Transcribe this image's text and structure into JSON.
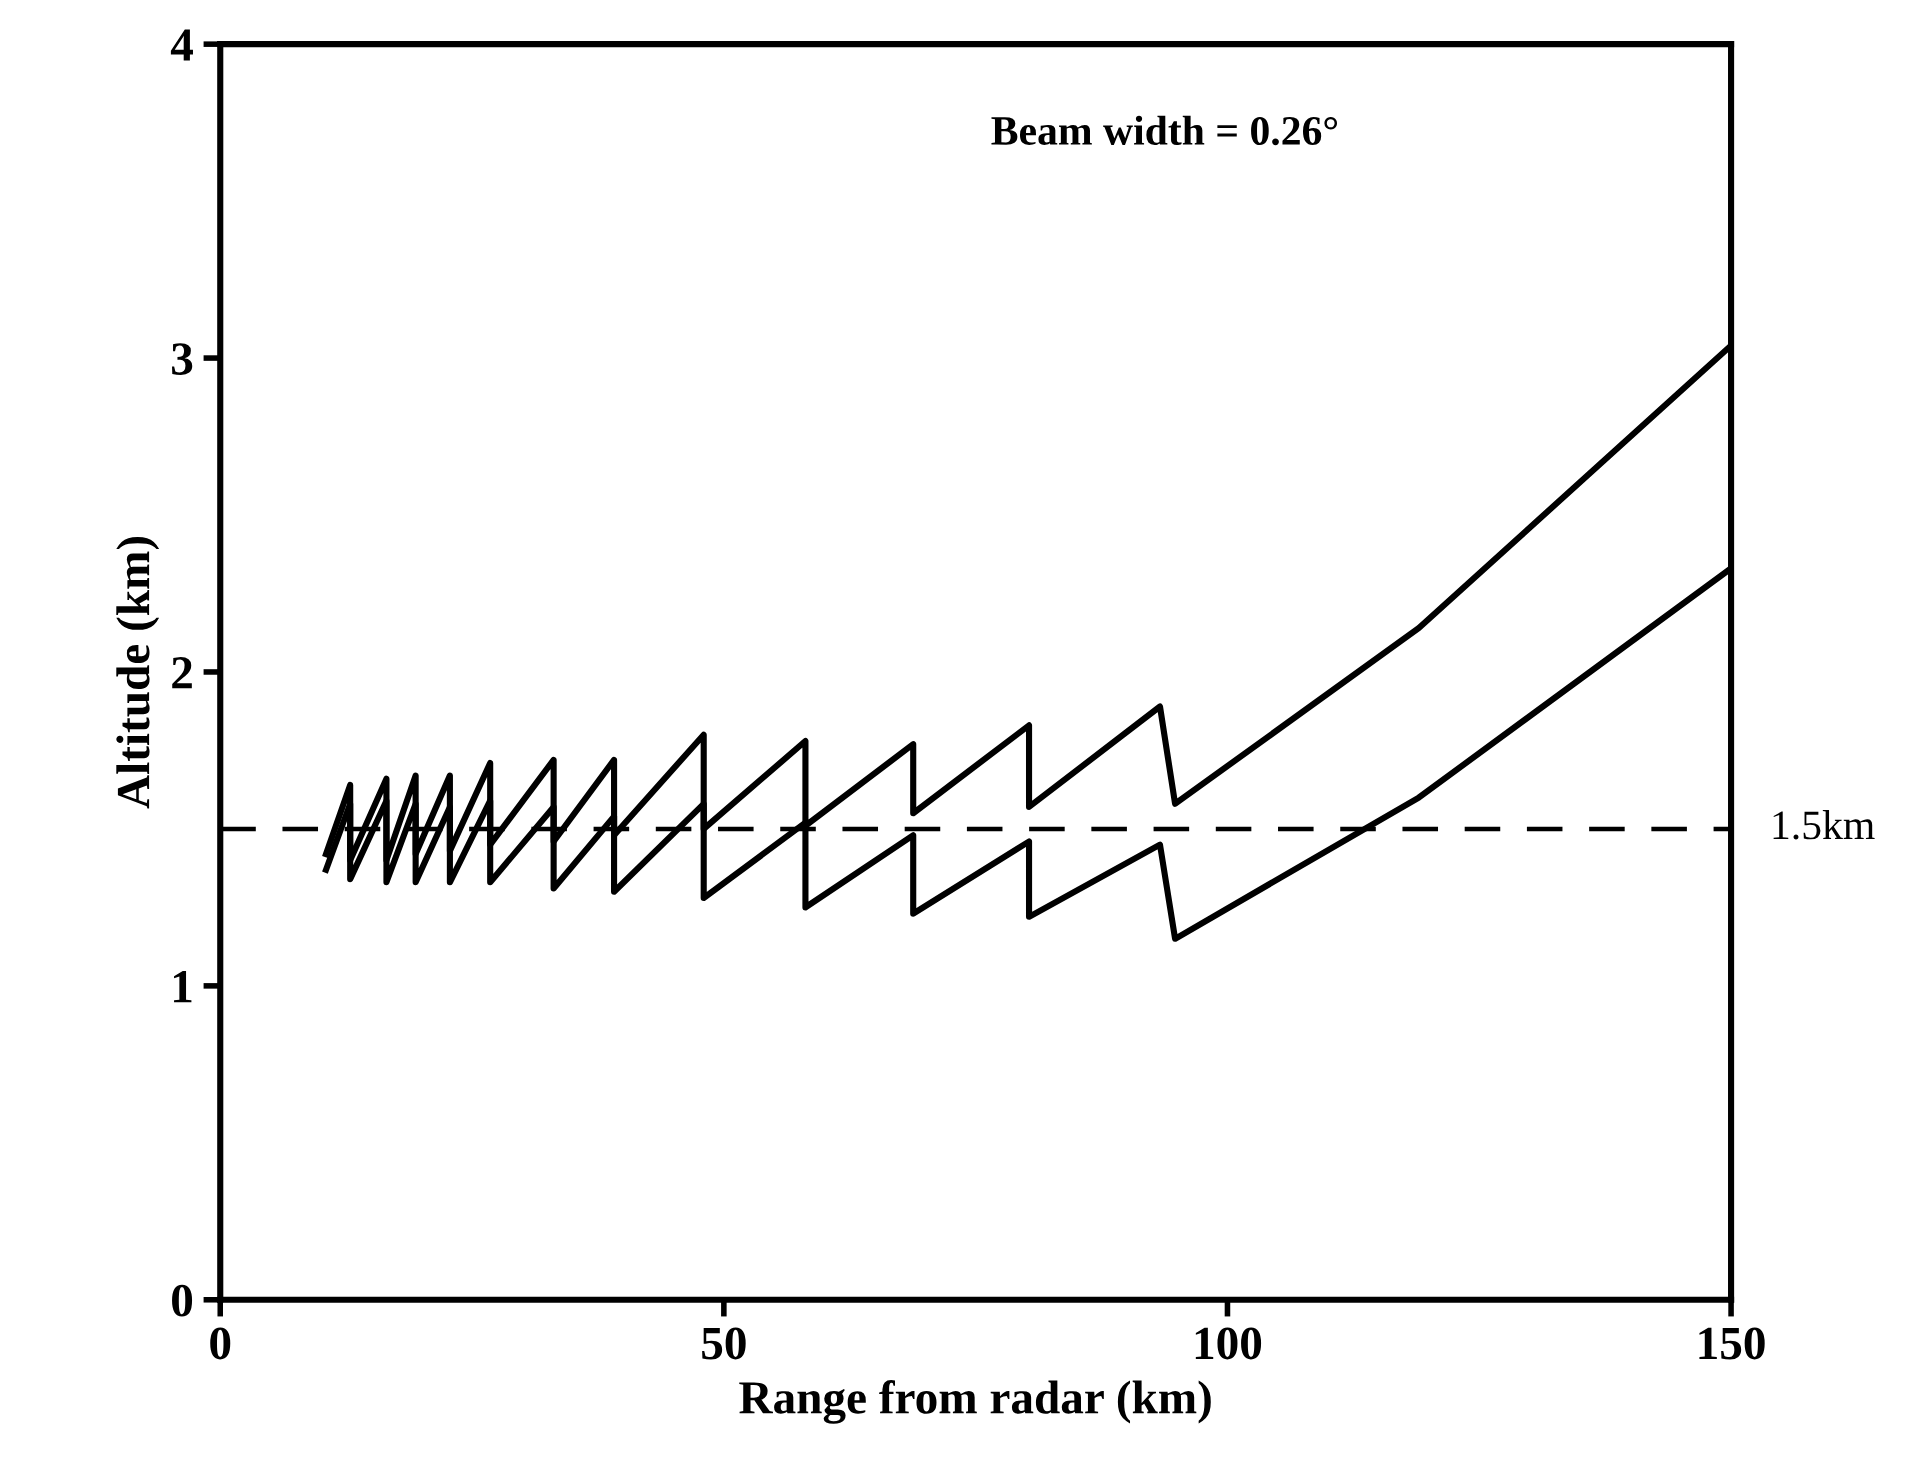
{
  "chart_data": {
    "type": "line",
    "xlabel": "Range from radar (km)",
    "ylabel": "Altitude (km)",
    "annotations": [
      "Beam width = 0.26°"
    ],
    "xlim": [
      0,
      150
    ],
    "xticks": [
      0,
      50,
      100,
      150
    ],
    "ylim": [
      0,
      4
    ],
    "yticks": [
      0,
      1,
      2,
      3,
      4
    ],
    "grid": false,
    "legend": false,
    "marker": "none",
    "line_style": "solid",
    "ref_lines": [
      {
        "axis": "y",
        "value": 1.5,
        "label": "1.5km",
        "color": "#000000",
        "line_style": "dashed"
      }
    ],
    "series": [
      {
        "color": "#000000",
        "x": [
          10.5,
          12.9,
          12.9,
          16.5,
          16.5,
          19.4,
          19.4,
          22.8,
          22.8,
          26.8,
          26.8,
          33.1,
          33.1,
          39.1,
          39.1,
          48.0,
          48.0,
          58.1,
          58.1,
          68.8,
          68.8,
          80.3,
          80.3,
          93.3,
          94.8,
          119,
          150
        ],
        "values": [
          1.42,
          1.64,
          1.4,
          1.66,
          1.4,
          1.67,
          1.42,
          1.67,
          1.43,
          1.71,
          1.45,
          1.72,
          1.46,
          1.72,
          1.48,
          1.8,
          1.5,
          1.78,
          1.51,
          1.77,
          1.55,
          1.83,
          1.57,
          1.89,
          1.58,
          2.14,
          3.04
        ]
      },
      {
        "color": "#000000",
        "x": [
          10.5,
          12.9,
          12.9,
          16.5,
          16.5,
          19.4,
          19.4,
          22.8,
          22.8,
          26.8,
          26.8,
          33.1,
          33.1,
          39.1,
          39.1,
          48.0,
          48.0,
          58.1,
          58.1,
          68.8,
          68.8,
          80.3,
          80.3,
          93.3,
          94.8,
          119,
          150
        ],
        "values": [
          1.37,
          1.58,
          1.34,
          1.59,
          1.33,
          1.58,
          1.33,
          1.57,
          1.33,
          1.59,
          1.33,
          1.57,
          1.31,
          1.54,
          1.3,
          1.58,
          1.28,
          1.52,
          1.25,
          1.48,
          1.23,
          1.46,
          1.22,
          1.45,
          1.15,
          1.6,
          2.33
        ]
      }
    ]
  }
}
